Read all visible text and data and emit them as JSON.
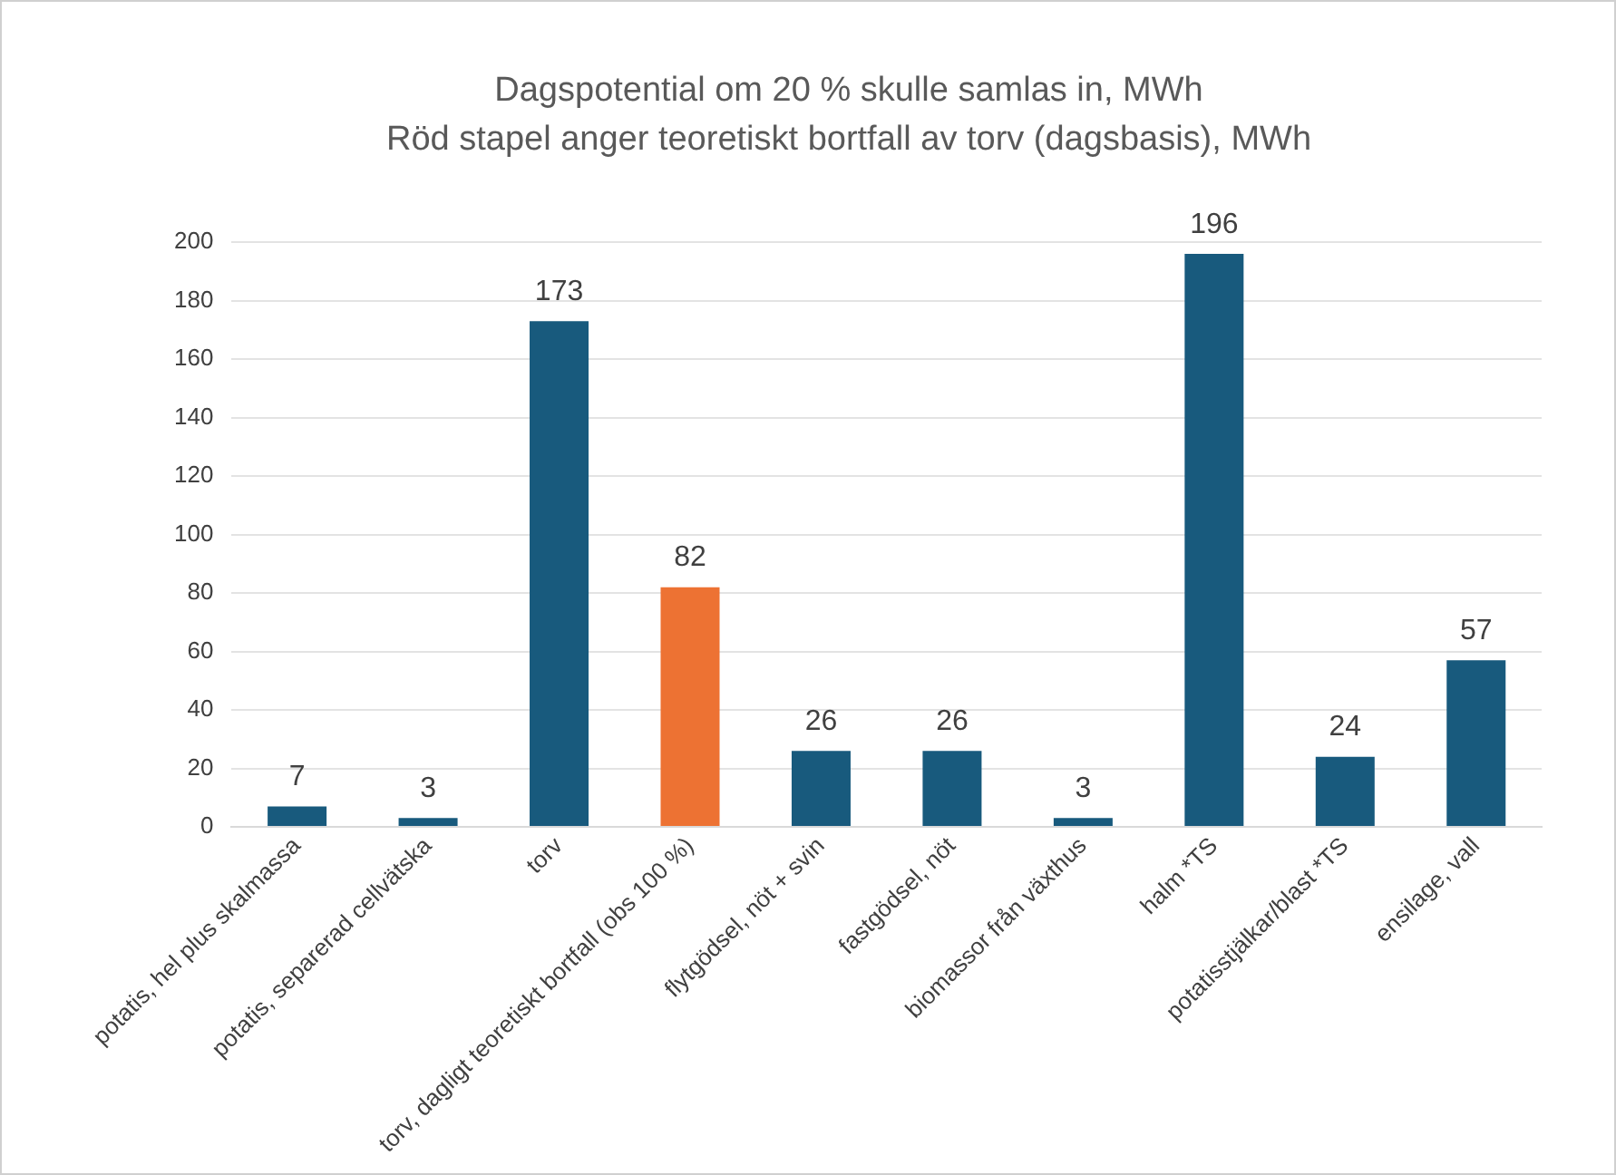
{
  "chart_data": {
    "type": "bar",
    "title": "Dagspotential om 20 % skulle samlas in, MWh",
    "subtitle": "Röd stapel anger teoretiskt bortfall av torv (dagsbasis), MWh",
    "categories": [
      "potatis, hel plus skalmassa",
      "potatis, separerad cellvätska",
      "torv",
      "torv, dagligt teoretiskt bortfall (obs 100 %)",
      "flytgödsel, nöt + svin",
      "fastgödsel, nöt",
      "biomassor från växthus",
      "halm *TS",
      "potatisstjälkar/blast *TS",
      "ensilage, vall"
    ],
    "values": [
      7,
      3,
      173,
      82,
      26,
      26,
      3,
      196,
      24,
      57
    ],
    "colors": [
      "#185a7d",
      "#185a7d",
      "#185a7d",
      "#ed7233",
      "#185a7d",
      "#185a7d",
      "#185a7d",
      "#185a7d",
      "#185a7d",
      "#185a7d"
    ],
    "ylim": [
      0,
      200
    ],
    "yticks": [
      0,
      20,
      40,
      60,
      80,
      100,
      120,
      140,
      160,
      180,
      200
    ],
    "grid": "y",
    "legend": false,
    "data_labels": true
  }
}
